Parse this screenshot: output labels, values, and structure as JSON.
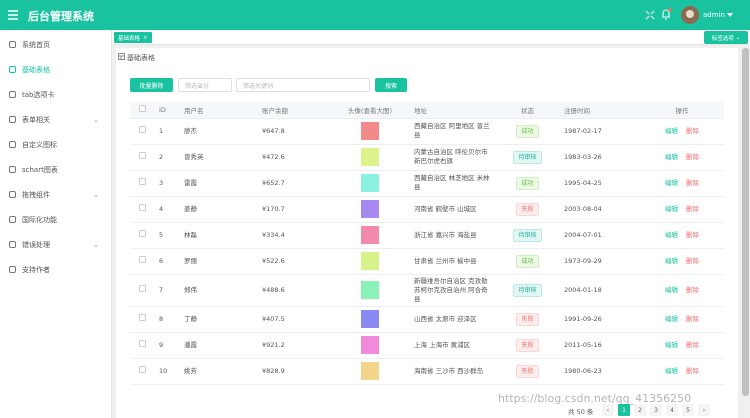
{
  "header": {
    "title": "后台管理系统",
    "user": "admin"
  },
  "sidebar": {
    "items": [
      {
        "label": "系统首页",
        "submenu": false
      },
      {
        "label": "基础表格",
        "submenu": false
      },
      {
        "label": "tab选项卡",
        "submenu": false
      },
      {
        "label": "表单相关",
        "submenu": true
      },
      {
        "label": "自定义图标",
        "submenu": false
      },
      {
        "label": "schart图表",
        "submenu": false
      },
      {
        "label": "拖拽组件",
        "submenu": true
      },
      {
        "label": "国际化功能",
        "submenu": false
      },
      {
        "label": "错误处理",
        "submenu": true
      },
      {
        "label": "支持作者",
        "submenu": false
      }
    ],
    "active_color": "#19c3a0"
  },
  "tabs": {
    "items": [
      "基础表格"
    ],
    "options": "标签选项"
  },
  "breadcrumb": "基础表格",
  "toolbar": {
    "delete": "批量删除",
    "select_placeholder": "筛选省份",
    "input_placeholder": "筛选关键词",
    "search": "搜索"
  },
  "table": {
    "columns": [
      "ID",
      "用户名",
      "账户余额",
      "头像(查看大图)",
      "地址",
      "状态",
      "注册时间",
      "操作"
    ],
    "actions": {
      "edit": "编辑",
      "delete": "删除"
    },
    "rows": [
      {
        "id": "1",
        "name": "廖杰",
        "balance": "¥647.8",
        "avatar_color": "#f28a8a",
        "address": "西藏自治区 阿里地区 普兰县",
        "status": "成功",
        "status_color": "#67c23a",
        "date": "1987-02-17"
      },
      {
        "id": "2",
        "name": "曾秀英",
        "balance": "¥472.6",
        "avatar_color": "#dcf28a",
        "address": "内蒙古自治区 呼伦贝尔市 新巴尔虎右旗",
        "status": "待审核",
        "status_color": "#19b3a0",
        "date": "1983-03-26"
      },
      {
        "id": "3",
        "name": "雷霞",
        "balance": "¥652.7",
        "avatar_color": "#8af2df",
        "address": "西藏自治区 林芝地区 米林县",
        "status": "成功",
        "status_color": "#67c23a",
        "date": "1995-04-25"
      },
      {
        "id": "4",
        "name": "姜静",
        "balance": "¥170.7",
        "avatar_color": "#a68af2",
        "address": "河南省 鹤壁市 山城区",
        "status": "失败",
        "status_color": "#f56c6c",
        "date": "2003-08-04"
      },
      {
        "id": "5",
        "name": "林磊",
        "balance": "¥334.4",
        "avatar_color": "#f28aac",
        "address": "浙江省 嘉兴市 海盐县",
        "status": "待审核",
        "status_color": "#19b3a0",
        "date": "2004-07-01"
      },
      {
        "id": "6",
        "name": "罗丽",
        "balance": "¥522.6",
        "avatar_color": "#d8f28a",
        "address": "甘肃省 兰州市 榆中县",
        "status": "成功",
        "status_color": "#67c23a",
        "date": "1973-09-29"
      },
      {
        "id": "7",
        "name": "郑伟",
        "balance": "¥488.6",
        "avatar_color": "#8af2b6",
        "address": "新疆维吾尔自治区 克孜勒苏柯尔克孜自治州 阿合奇县",
        "status": "待审核",
        "status_color": "#19b3a0",
        "date": "2004-01-18"
      },
      {
        "id": "8",
        "name": "丁静",
        "balance": "¥407.5",
        "avatar_color": "#8a8af2",
        "address": "山西省 太原市 迎泽区",
        "status": "失败",
        "status_color": "#f56c6c",
        "date": "1991-09-26"
      },
      {
        "id": "9",
        "name": "潘霞",
        "balance": "¥921.2",
        "avatar_color": "#f28adc",
        "address": "上海 上海市 黄浦区",
        "status": "失败",
        "status_color": "#f56c6c",
        "date": "2011-05-16"
      },
      {
        "id": "10",
        "name": "姚芳",
        "balance": "¥828.9",
        "avatar_color": "#f2d48a",
        "address": "海南省 三沙市 西沙群岛",
        "status": "失败",
        "status_color": "#f56c6c",
        "date": "1980-06-23"
      }
    ]
  },
  "pagination": {
    "total": "共 50 条",
    "pages": [
      "1",
      "2",
      "3",
      "4",
      "5"
    ],
    "current": 1
  },
  "watermark": "https://blog.csdn.net/qq_41356250"
}
